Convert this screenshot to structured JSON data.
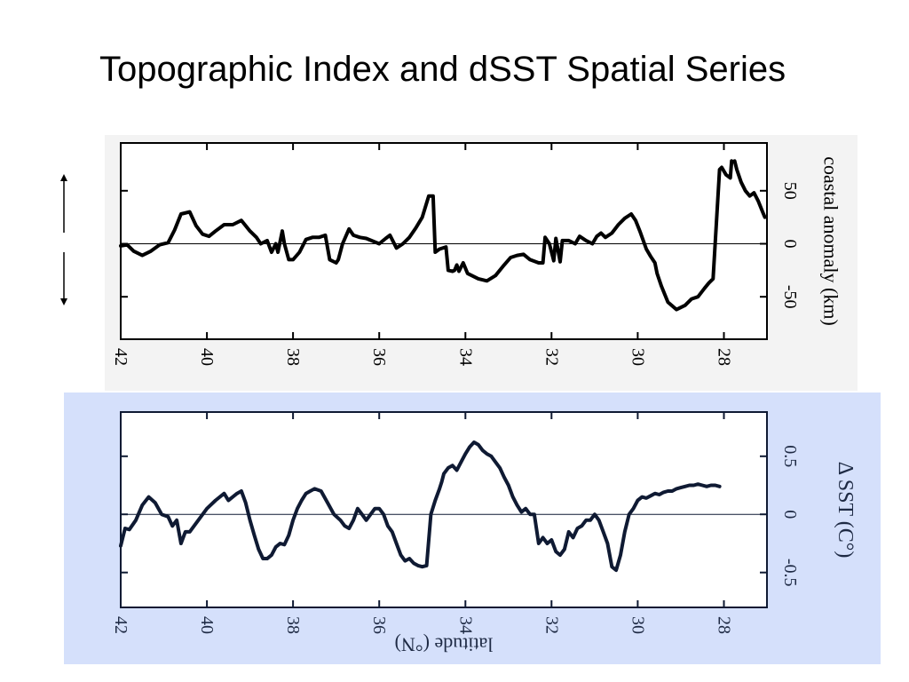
{
  "title": "Topographic Index and dSST Spatial Series",
  "chart_data": [
    {
      "type": "line",
      "ylabel": "coastal anomaly (km)",
      "xlim": [
        42,
        27
      ],
      "ylim": [
        -90,
        95
      ],
      "x_ticks": [
        42,
        40,
        38,
        36,
        34,
        32,
        30,
        28
      ],
      "x_tick_labels": [
        "42",
        "40",
        "38",
        "36",
        "34",
        "32",
        "30",
        "28"
      ],
      "y_ticks": [
        50,
        0,
        -50
      ],
      "y_tick_labels": [
        "50",
        "0",
        "-50"
      ],
      "zero_line": true,
      "series": [
        {
          "color": "#000000",
          "x": [
            42.0,
            41.85,
            41.7,
            41.5,
            41.3,
            41.1,
            40.9,
            40.75,
            40.6,
            40.4,
            40.25,
            40.1,
            39.95,
            39.8,
            39.6,
            39.4,
            39.2,
            39.0,
            38.85,
            38.75,
            38.6,
            38.5,
            38.4,
            38.35,
            38.25,
            38.2,
            38.1,
            38.0,
            37.85,
            37.7,
            37.55,
            37.4,
            37.25,
            37.15,
            37.0,
            36.95,
            36.85,
            36.7,
            36.6,
            36.45,
            36.3,
            36.0,
            35.85,
            35.75,
            35.6,
            35.45,
            35.3,
            35.15,
            35.0,
            34.85,
            34.75,
            34.7,
            34.6,
            34.45,
            34.4,
            34.3,
            34.25,
            34.2,
            34.15,
            34.05,
            33.95,
            33.85,
            33.7,
            33.5,
            33.3,
            33.1,
            32.95,
            32.8,
            32.65,
            32.5,
            32.3,
            32.2,
            32.15,
            32.05,
            31.95,
            31.9,
            31.8,
            31.75,
            31.6,
            31.45,
            31.35,
            31.2,
            31.05,
            30.95,
            30.85,
            30.75,
            30.6,
            30.45,
            30.3,
            30.15,
            30.05,
            29.95,
            29.8,
            29.7,
            29.6,
            29.55,
            29.45,
            29.3,
            29.1,
            28.9,
            28.75,
            28.6,
            28.45,
            28.35,
            28.25,
            28.1,
            28.05,
            27.95,
            27.85,
            27.82,
            27.8,
            27.75,
            27.7,
            27.6,
            27.5,
            27.4,
            27.3,
            27.2,
            27.1,
            27.05
          ],
          "y": [
            -2,
            -1,
            -7,
            -11,
            -7,
            -1,
            1,
            13,
            28,
            30,
            17,
            9,
            7,
            12,
            18,
            18,
            22,
            12,
            6,
            0,
            3,
            -8,
            0,
            -8,
            12,
            0,
            -15,
            -15,
            -8,
            4,
            6,
            6,
            8,
            -15,
            -18,
            -15,
            0,
            14,
            8,
            6,
            5,
            0,
            5,
            8,
            -4,
            0,
            6,
            15,
            25,
            45,
            45,
            -8,
            -5,
            -3,
            -25,
            -26,
            -25,
            -20,
            -26,
            -18,
            -28,
            -30,
            -33,
            -35,
            -30,
            -20,
            -13,
            -11,
            -10,
            -15,
            -18,
            -18,
            6,
            0,
            -16,
            5,
            -17,
            3,
            3,
            0,
            7,
            3,
            0,
            7,
            10,
            6,
            10,
            18,
            24,
            28,
            22,
            12,
            -5,
            -12,
            -18,
            -28,
            -40,
            -55,
            -62,
            -58,
            -52,
            -50,
            -42,
            -37,
            -33,
            70,
            72,
            65,
            62,
            78,
            77,
            78,
            70,
            58,
            50,
            45,
            48,
            40,
            30,
            25
          ]
        }
      ]
    },
    {
      "type": "line",
      "xlabel": "latitude (°N)",
      "ylabel": "Δ SST (C°)",
      "xlim": [
        42,
        27
      ],
      "ylim": [
        -0.8,
        0.88
      ],
      "x_ticks": [
        42,
        40,
        38,
        36,
        34,
        32,
        30,
        28
      ],
      "x_tick_labels": [
        "42",
        "40",
        "38",
        "36",
        "34",
        "32",
        "30",
        "28"
      ],
      "y_ticks": [
        0.5,
        0,
        -0.5
      ],
      "y_tick_labels": [
        "0.5",
        "0",
        "-0.5"
      ],
      "zero_line": true,
      "series": [
        {
          "color": "#0f1a33",
          "x": [
            42.0,
            41.9,
            41.8,
            41.65,
            41.5,
            41.35,
            41.2,
            41.05,
            40.9,
            40.8,
            40.7,
            40.6,
            40.5,
            40.4,
            40.2,
            40.0,
            39.8,
            39.6,
            39.5,
            39.4,
            39.3,
            39.2,
            39.1,
            39.0,
            38.9,
            38.8,
            38.7,
            38.6,
            38.5,
            38.4,
            38.3,
            38.2,
            38.1,
            38.0,
            37.9,
            37.8,
            37.7,
            37.6,
            37.5,
            37.35,
            37.2,
            37.05,
            36.9,
            36.8,
            36.7,
            36.6,
            36.5,
            36.4,
            36.3,
            36.2,
            36.1,
            36.0,
            35.9,
            35.8,
            35.7,
            35.6,
            35.5,
            35.4,
            35.3,
            35.2,
            35.1,
            35.0,
            34.9,
            34.8,
            34.7,
            34.6,
            34.55,
            34.5,
            34.4,
            34.3,
            34.2,
            34.1,
            34.0,
            33.9,
            33.8,
            33.7,
            33.6,
            33.5,
            33.4,
            33.3,
            33.2,
            33.1,
            33.0,
            32.9,
            32.8,
            32.7,
            32.6,
            32.5,
            32.4,
            32.3,
            32.2,
            32.1,
            32.0,
            31.9,
            31.8,
            31.7,
            31.6,
            31.5,
            31.4,
            31.3,
            31.2,
            31.1,
            31.0,
            30.9,
            30.8,
            30.7,
            30.6,
            30.5,
            30.4,
            30.3,
            30.2,
            30.1,
            30.0,
            29.9,
            29.8,
            29.7,
            29.6,
            29.5,
            29.4,
            29.3,
            29.2,
            29.1,
            29.0,
            28.9,
            28.8,
            28.7,
            28.6,
            28.5,
            28.4,
            28.3,
            28.2,
            28.1
          ],
          "y": [
            -0.27,
            -0.12,
            -0.13,
            -0.05,
            0.08,
            0.15,
            0.1,
            0.0,
            -0.02,
            -0.1,
            -0.05,
            -0.25,
            -0.15,
            -0.15,
            -0.05,
            0.05,
            0.12,
            0.18,
            0.12,
            0.15,
            0.18,
            0.2,
            0.1,
            -0.05,
            -0.18,
            -0.3,
            -0.38,
            -0.38,
            -0.35,
            -0.28,
            -0.25,
            -0.26,
            -0.18,
            -0.05,
            0.05,
            0.12,
            0.18,
            0.2,
            0.22,
            0.2,
            0.1,
            0.0,
            -0.05,
            -0.1,
            -0.12,
            -0.05,
            0.05,
            0.0,
            -0.05,
            0.0,
            0.05,
            0.05,
            0.0,
            -0.1,
            -0.15,
            -0.25,
            -0.35,
            -0.4,
            -0.38,
            -0.42,
            -0.44,
            -0.45,
            -0.44,
            0.0,
            0.12,
            0.22,
            0.28,
            0.35,
            0.4,
            0.42,
            0.38,
            0.45,
            0.52,
            0.58,
            0.62,
            0.6,
            0.55,
            0.52,
            0.5,
            0.45,
            0.4,
            0.32,
            0.25,
            0.15,
            0.08,
            0.02,
            0.05,
            0.0,
            0.0,
            -0.25,
            -0.2,
            -0.25,
            -0.22,
            -0.32,
            -0.35,
            -0.3,
            -0.15,
            -0.2,
            -0.12,
            -0.1,
            -0.05,
            -0.05,
            0.0,
            -0.05,
            -0.15,
            -0.25,
            -0.45,
            -0.48,
            -0.35,
            -0.15,
            0.0,
            0.05,
            0.12,
            0.15,
            0.14,
            0.16,
            0.18,
            0.17,
            0.19,
            0.2,
            0.2,
            0.22,
            0.23,
            0.24,
            0.25,
            0.25,
            0.26,
            0.25,
            0.24,
            0.25,
            0.25,
            0.24
          ]
        }
      ]
    }
  ]
}
